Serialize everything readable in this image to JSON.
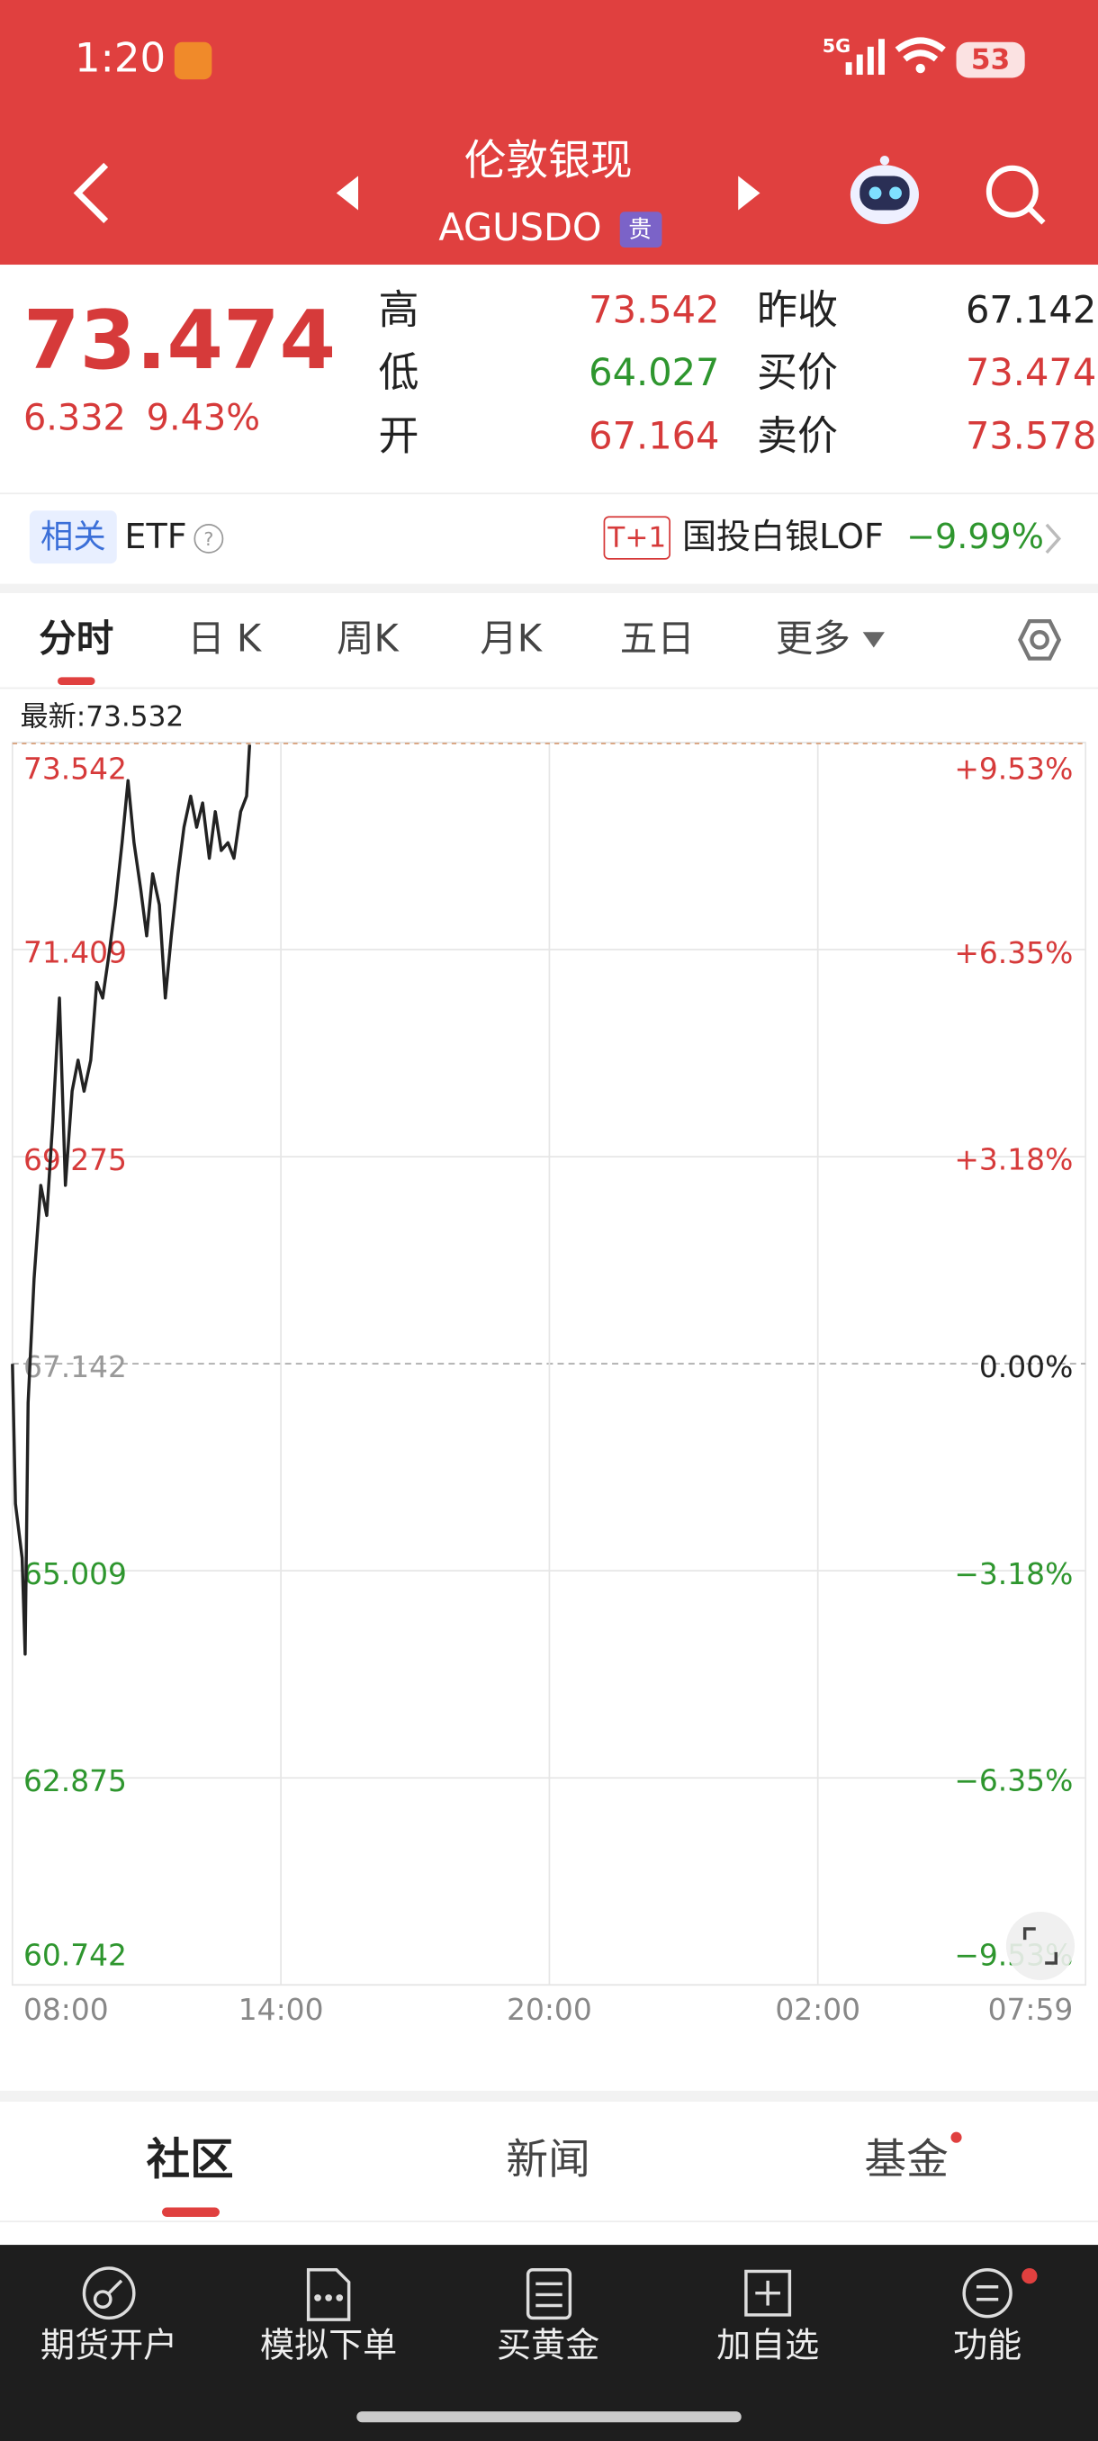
{
  "status_bar": {
    "time": "1:20",
    "network": "5G",
    "battery": "53"
  },
  "header": {
    "title": "伦敦银现",
    "code": "AGUSDO",
    "badge": "贵"
  },
  "quote": {
    "price": 73.474,
    "change": 6.332,
    "change_pct": "9.43%",
    "stats": [
      {
        "label": "高",
        "value": 73.542
      },
      {
        "label": "昨收",
        "value": 67.142
      },
      {
        "label": "低",
        "value": 64.027
      },
      {
        "label": "买价",
        "value": 73.474
      },
      {
        "label": "开",
        "value": 67.164
      },
      {
        "label": "卖价",
        "value": 73.578
      }
    ]
  },
  "related": {
    "tag": "相关",
    "label": "ETF",
    "fund_badge": "T+1",
    "fund_name": "国投白银LOF",
    "fund_change": "−9.99%"
  },
  "tabs": [
    "分时",
    "日 K",
    "周K",
    "月K",
    "五日",
    "更多"
  ],
  "chart": {
    "type": "line",
    "latest_label": "最新:",
    "latest": 73.532,
    "base": 67.142,
    "grid": true,
    "x": [
      "08:00",
      "08:04",
      "08:13",
      "08:17",
      "08:21",
      "08:29",
      "08:38",
      "08:46",
      "08:54",
      "09:03",
      "09:11",
      "09:20",
      "09:28",
      "09:36",
      "09:45",
      "09:53",
      "10:01",
      "10:10",
      "10:18",
      "10:27",
      "10:35",
      "10:43",
      "10:52",
      "11:00",
      "11:08",
      "11:17",
      "11:25",
      "11:33",
      "11:42",
      "11:50",
      "11:59",
      "12:07",
      "12:15",
      "12:24",
      "12:32",
      "12:40",
      "12:49",
      "12:57",
      "13:06",
      "13:14",
      "13:18"
    ],
    "series": [
      {
        "color": "#222222",
        "values": [
          67.14,
          65.7,
          65.14,
          64.15,
          66.74,
          68.02,
          68.98,
          68.67,
          69.63,
          70.91,
          68.98,
          69.95,
          70.27,
          69.95,
          70.27,
          71.07,
          70.91,
          71.39,
          71.87,
          72.51,
          73.15,
          72.51,
          72.03,
          71.55,
          72.19,
          71.87,
          70.91,
          71.55,
          72.19,
          72.67,
          72.99,
          72.67,
          72.92,
          72.35,
          72.83,
          72.43,
          72.51,
          72.35,
          72.83,
          72.99,
          73.52
        ]
      }
    ],
    "xlim": [
      "08:00",
      "07:59"
    ],
    "xticks": [
      "08:00",
      "14:00",
      "20:00",
      "02:00",
      "07:59"
    ],
    "ylim": [
      60.742,
      73.542
    ],
    "yticks": [
      73.542,
      71.409,
      69.275,
      67.142,
      65.009,
      62.875,
      60.742
    ],
    "y2lim": [
      -9.53,
      9.53
    ],
    "y2ticks": [
      {
        "value": 9.53,
        "label": "+9.53%"
      },
      {
        "value": 6.35,
        "label": "+6.35%"
      },
      {
        "value": 3.18,
        "label": "+3.18%"
      },
      {
        "value": 0,
        "label": "0.00%"
      },
      {
        "value": -3.18,
        "label": "−3.18%"
      },
      {
        "value": -6.35,
        "label": "−6.35%"
      },
      {
        "value": -9.53,
        "label": "−9.53%"
      }
    ]
  },
  "content_tabs": [
    "社区",
    "新闻",
    "基金"
  ],
  "bottom_nav": [
    "期货开户",
    "模拟下单",
    "买黄金",
    "加自选",
    "功能"
  ]
}
